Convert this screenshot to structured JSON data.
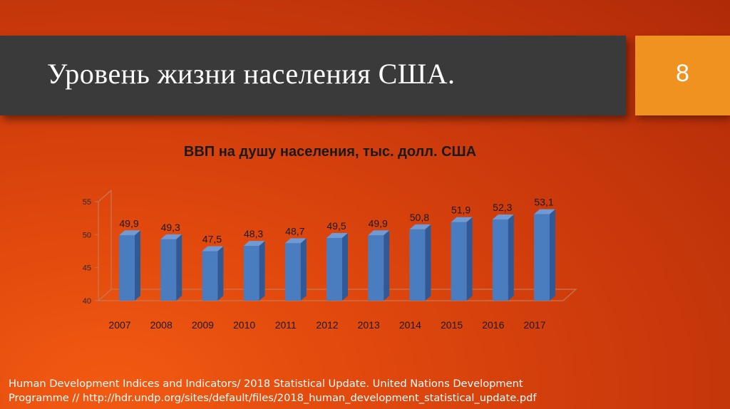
{
  "slide": {
    "title": "Уровень жизни населения США.",
    "number": "8"
  },
  "chart_data": {
    "type": "bar",
    "title": "ВВП на душу населения, тыс. долл. США",
    "categories": [
      "2007",
      "2008",
      "2009",
      "2010",
      "2011",
      "2012",
      "2013",
      "2014",
      "2015",
      "2016",
      "2017"
    ],
    "values": [
      49.9,
      49.3,
      47.5,
      48.3,
      48.7,
      49.5,
      49.9,
      50.8,
      51.9,
      52.3,
      53.1
    ],
    "data_labels": [
      "49,9",
      "49,3",
      "47,5",
      "48,3",
      "48,7",
      "49,5",
      "49,9",
      "50,8",
      "51,9",
      "52,3",
      "53,1"
    ],
    "y_ticks": [
      40,
      45,
      50,
      55
    ],
    "ylim": [
      40,
      55
    ],
    "xlabel": "",
    "ylabel": "",
    "grid": false,
    "legend": false,
    "bar_color": "#4a7cc0",
    "style": "3d"
  },
  "source": {
    "line1": "Human Development Indices and Indicators/ 2018 Statistical Update. United Nations Development",
    "line2": "Programme // http://hdr.undp.org/sites/default/files/2018_human_development_statistical_update.pdf"
  },
  "colors": {
    "background": "#d8440e",
    "title_band": "#3a3a3a",
    "number_box": "#f0921f"
  }
}
